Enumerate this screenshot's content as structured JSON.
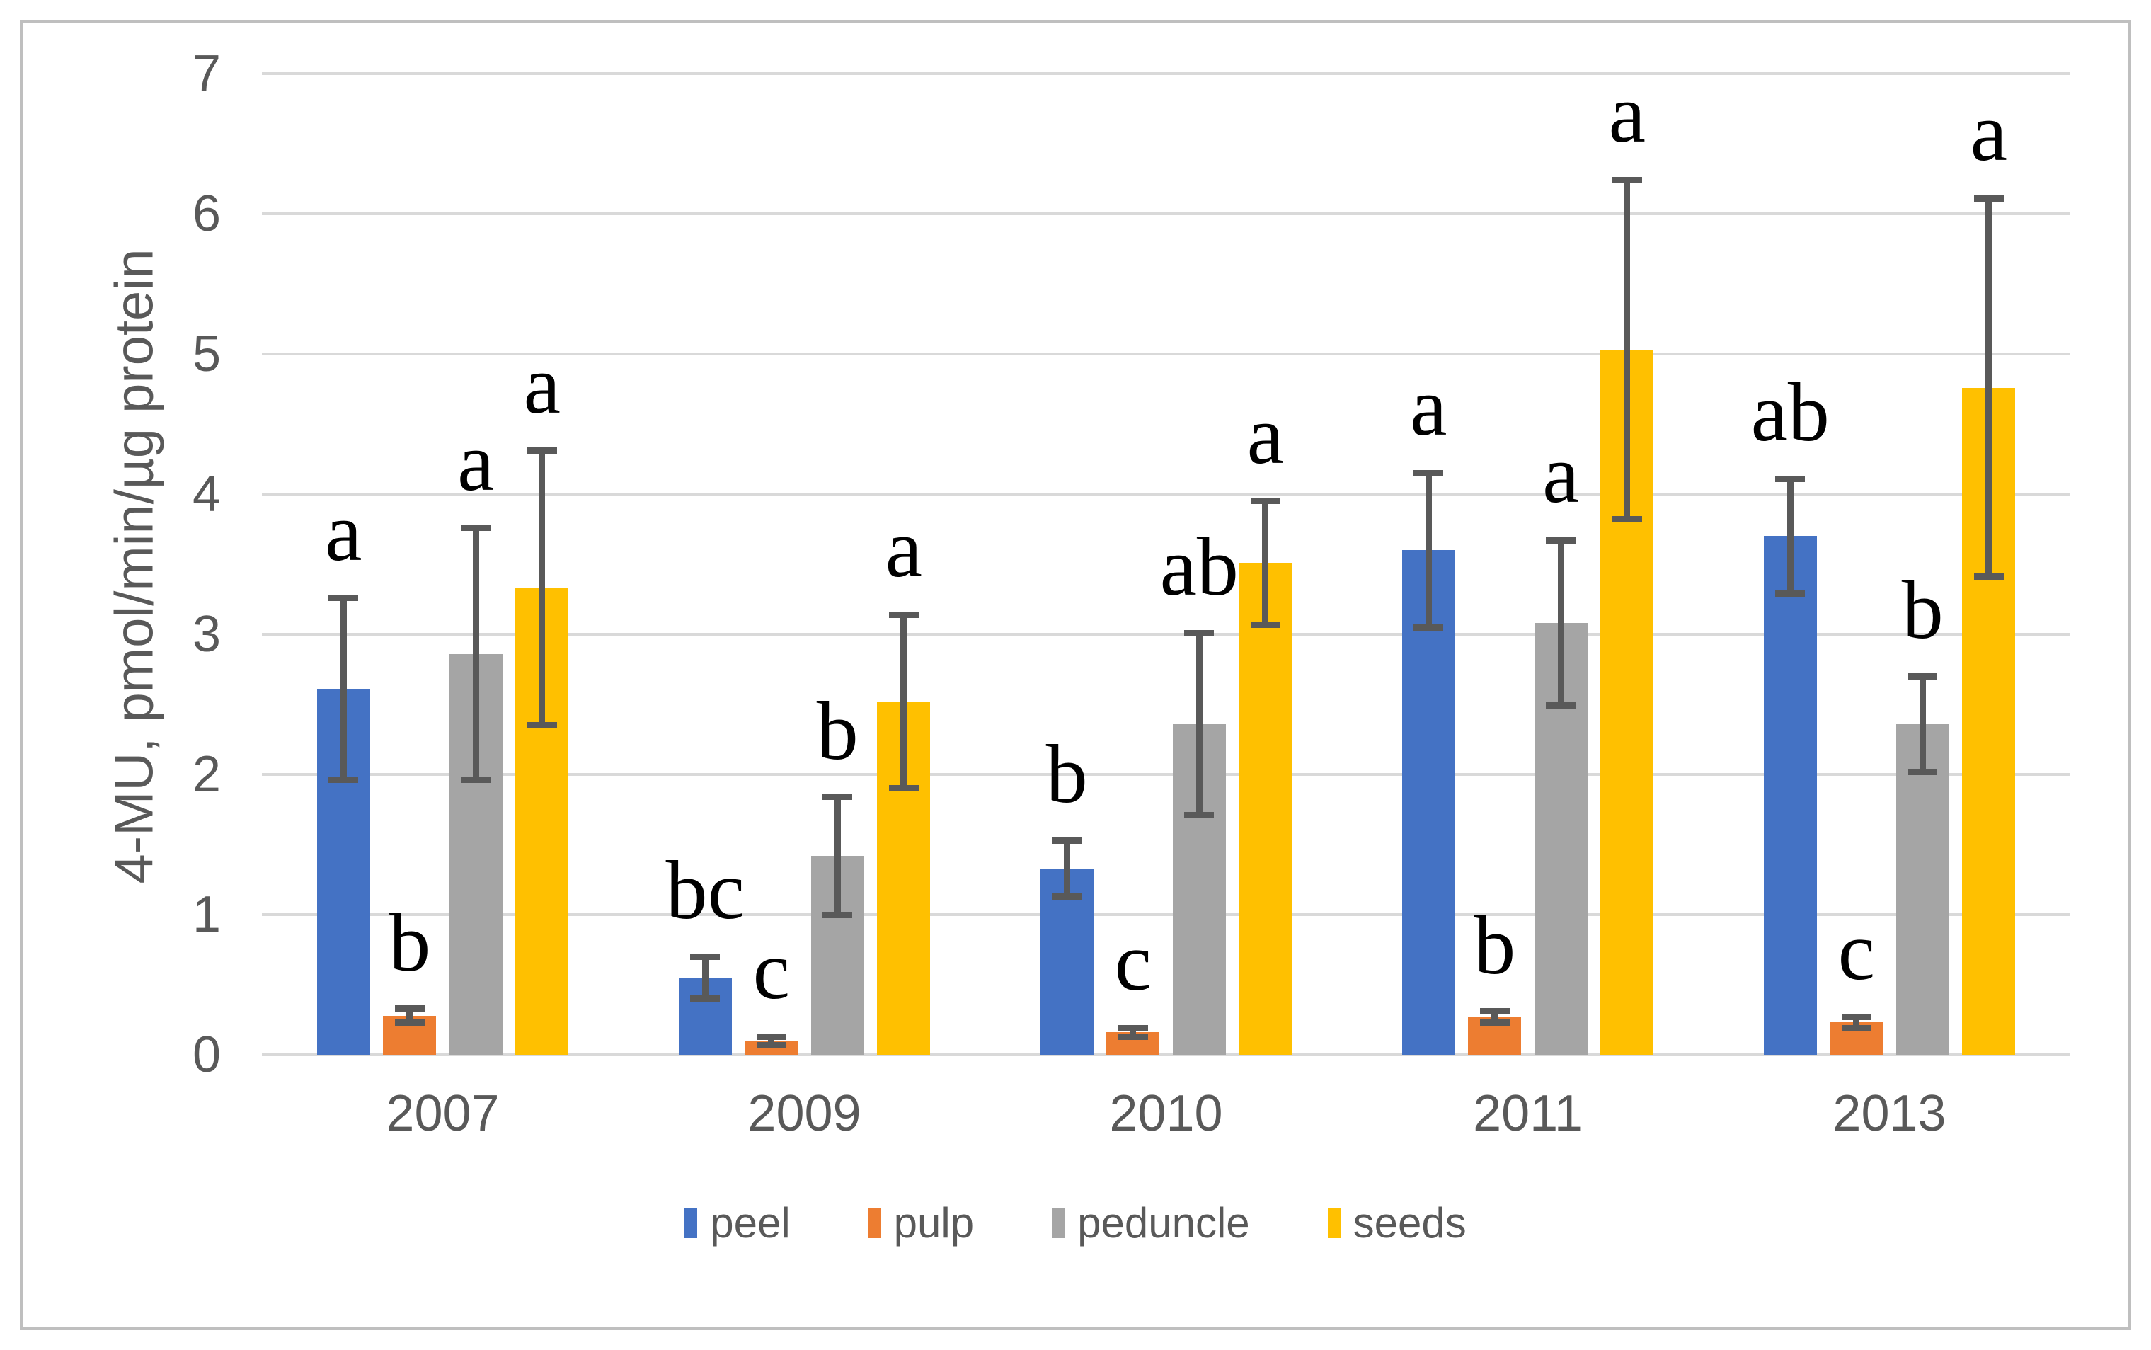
{
  "colors": {
    "peel": "#4472C4",
    "pulp": "#ED7D31",
    "peduncle": "#A5A5A5",
    "seeds": "#FFC000",
    "gridline": "#D9D9D9",
    "axis_text": "#595959",
    "error_bar": "#595959",
    "frame_border": "#BFBFBF",
    "letters": "#000000"
  },
  "y_axis": {
    "title": "4-MU, pmol/min/µg protein",
    "tick_labels": [
      "0",
      "1",
      "2",
      "3",
      "4",
      "5",
      "6",
      "7"
    ]
  },
  "legend": [
    {
      "label": "peel",
      "color": "#4472C4"
    },
    {
      "label": "pulp",
      "color": "#ED7D31"
    },
    {
      "label": "peduncle",
      "color": "#A5A5A5"
    },
    {
      "label": "seeds",
      "color": "#FFC000"
    }
  ],
  "chart_data": {
    "type": "bar",
    "title": "",
    "xlabel": "",
    "ylabel": "4-MU, pmol/min/µg protein",
    "ylim": [
      0,
      7
    ],
    "grid": true,
    "legend_position": "bottom",
    "categories": [
      "2007",
      "2009",
      "2010",
      "2011",
      "2013"
    ],
    "series": [
      {
        "name": "peel",
        "color": "#4472C4",
        "values": [
          2.61,
          0.55,
          1.33,
          3.6,
          3.7
        ],
        "errors": [
          0.65,
          0.15,
          0.2,
          0.55,
          0.41
        ],
        "letters": [
          "a",
          "bc",
          "b",
          "a",
          "ab"
        ]
      },
      {
        "name": "pulp",
        "color": "#ED7D31",
        "values": [
          0.28,
          0.1,
          0.16,
          0.27,
          0.23
        ],
        "errors": [
          0.05,
          0.03,
          0.03,
          0.04,
          0.04
        ],
        "letters": [
          "b",
          "c",
          "c",
          "b",
          "c"
        ]
      },
      {
        "name": "peduncle",
        "color": "#A5A5A5",
        "values": [
          2.86,
          1.42,
          2.36,
          3.08,
          2.36
        ],
        "errors": [
          0.9,
          0.42,
          0.65,
          0.59,
          0.34
        ],
        "letters": [
          "a",
          "b",
          "ab",
          "a",
          "b"
        ]
      },
      {
        "name": "seeds",
        "color": "#FFC000",
        "values": [
          3.33,
          2.52,
          3.51,
          5.03,
          4.76
        ],
        "errors": [
          0.98,
          0.62,
          0.44,
          1.21,
          1.35
        ],
        "letters": [
          "a",
          "a",
          "a",
          "a",
          "a"
        ]
      }
    ]
  }
}
